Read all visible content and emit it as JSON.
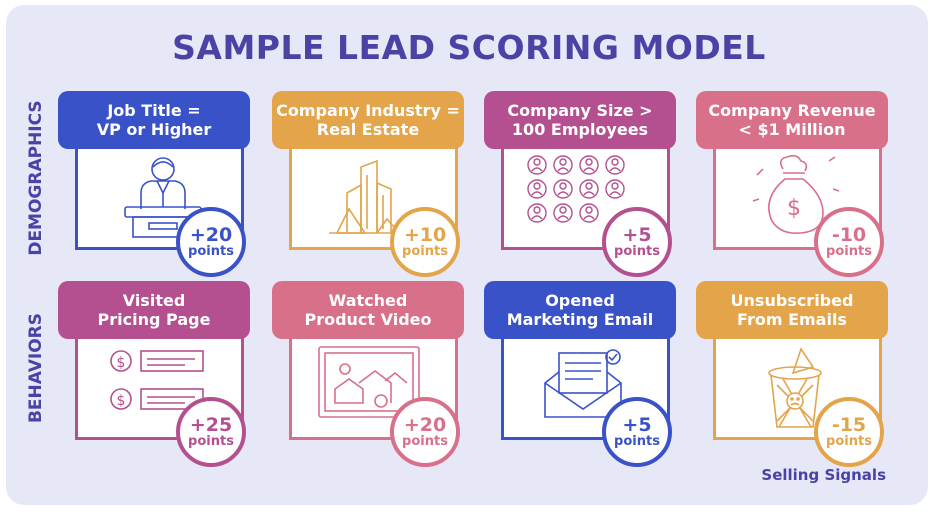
{
  "title": "SAMPLE LEAD SCORING MODEL",
  "rows": {
    "demographics": "DEMOGRAPHICS",
    "behaviors": "BEHAVIORS"
  },
  "cards": [
    {
      "line1": "Job Title =",
      "line2": "VP or Higher",
      "value": "+20",
      "unit": "points",
      "icon": "executive-desk-icon",
      "color": "#3a52c8"
    },
    {
      "line1": "Company Industry =",
      "line2": "Real Estate",
      "value": "+10",
      "unit": "points",
      "icon": "buildings-icon",
      "color": "#e3a44a"
    },
    {
      "line1": "Company Size >",
      "line2": "100 Employees",
      "value": "+5",
      "unit": "points",
      "icon": "employees-grid-icon",
      "color": "#b4508f"
    },
    {
      "line1": "Company Revenue",
      "line2": "< $1 Million",
      "value": "-10",
      "unit": "points",
      "icon": "money-bag-icon",
      "color": "#d8708a"
    },
    {
      "line1": "Visited",
      "line2": "Pricing Page",
      "value": "+25",
      "unit": "points",
      "icon": "pricing-list-icon",
      "color": "#b4508f"
    },
    {
      "line1": "Watched",
      "line2": "Product Video",
      "value": "+20",
      "unit": "points",
      "icon": "video-houses-icon",
      "color": "#d8708a"
    },
    {
      "line1": "Opened",
      "line2": "Marketing Email",
      "value": "+5",
      "unit": "points",
      "icon": "open-envelope-icon",
      "color": "#3a52c8"
    },
    {
      "line1": "Unsubscribed",
      "line2": "From Emails",
      "value": "-15",
      "unit": "points",
      "icon": "trash-can-icon",
      "color": "#e3a44a"
    }
  ],
  "brand": "Selling Signals"
}
